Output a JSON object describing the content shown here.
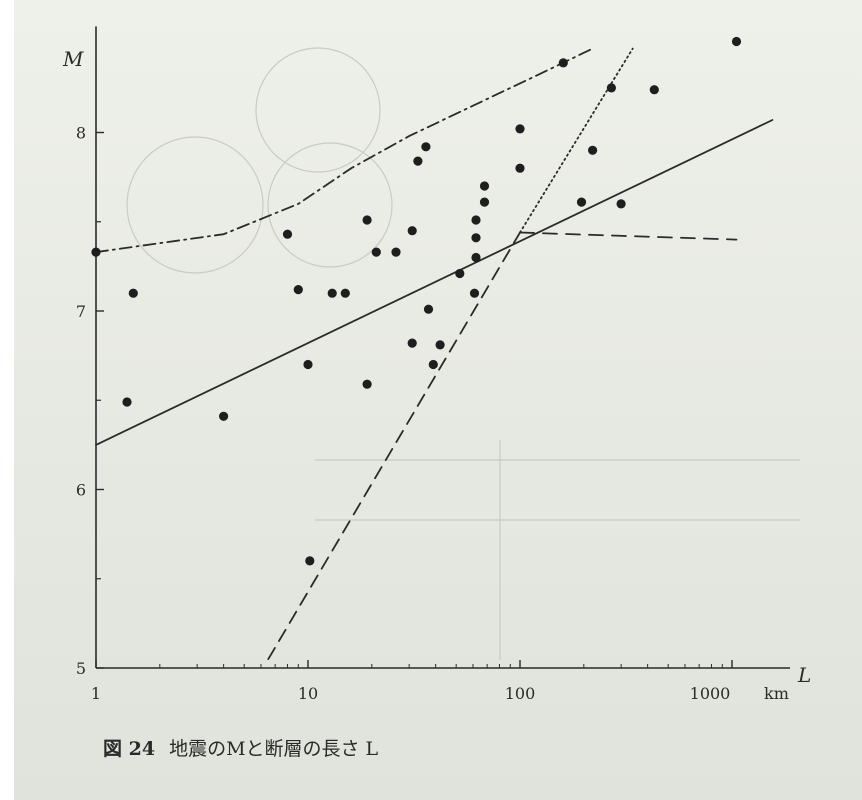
{
  "caption": {
    "figure_label": "図 24",
    "text": "地震のMと断層の長さ L"
  },
  "chart_data": {
    "type": "scatter",
    "title": "",
    "xlabel": "L",
    "ylabel": "M",
    "x_scale": "log",
    "x_unit": "km",
    "xlim": [
      1,
      1600
    ],
    "ylim": [
      5,
      8.55
    ],
    "x_ticks": [
      {
        "value": 1,
        "label": "1"
      },
      {
        "value": 10,
        "label": "10"
      },
      {
        "value": 100,
        "label": "100"
      },
      {
        "value": 1000,
        "label": "1000"
      }
    ],
    "y_ticks": [
      {
        "value": 5,
        "label": "5"
      },
      {
        "value": 6,
        "label": "6"
      },
      {
        "value": 7,
        "label": "7"
      },
      {
        "value": 8,
        "label": "8"
      }
    ],
    "points": [
      {
        "x": 1.0,
        "y": 7.33
      },
      {
        "x": 1.4,
        "y": 6.49
      },
      {
        "x": 1.5,
        "y": 7.1
      },
      {
        "x": 4.0,
        "y": 6.41
      },
      {
        "x": 8.0,
        "y": 7.43
      },
      {
        "x": 9.0,
        "y": 7.12
      },
      {
        "x": 10.0,
        "y": 6.7
      },
      {
        "x": 10.2,
        "y": 5.6
      },
      {
        "x": 13.0,
        "y": 7.1
      },
      {
        "x": 15.0,
        "y": 7.1
      },
      {
        "x": 19.0,
        "y": 6.59
      },
      {
        "x": 19.0,
        "y": 7.51
      },
      {
        "x": 21.0,
        "y": 7.33
      },
      {
        "x": 26.0,
        "y": 7.33
      },
      {
        "x": 31.0,
        "y": 6.82
      },
      {
        "x": 31.0,
        "y": 7.45
      },
      {
        "x": 33.0,
        "y": 7.84
      },
      {
        "x": 36.0,
        "y": 7.92
      },
      {
        "x": 37.0,
        "y": 7.01
      },
      {
        "x": 39.0,
        "y": 6.7
      },
      {
        "x": 42.0,
        "y": 6.81
      },
      {
        "x": 52.0,
        "y": 7.21
      },
      {
        "x": 61.0,
        "y": 7.1
      },
      {
        "x": 62.0,
        "y": 7.3
      },
      {
        "x": 62.0,
        "y": 7.51
      },
      {
        "x": 62.0,
        "y": 7.41
      },
      {
        "x": 68.0,
        "y": 7.61
      },
      {
        "x": 68.0,
        "y": 7.7
      },
      {
        "x": 100.0,
        "y": 8.02
      },
      {
        "x": 100.0,
        "y": 7.8
      },
      {
        "x": 160.0,
        "y": 8.39
      },
      {
        "x": 195.0,
        "y": 7.61
      },
      {
        "x": 220.0,
        "y": 7.9
      },
      {
        "x": 270.0,
        "y": 8.25
      },
      {
        "x": 300.0,
        "y": 7.6
      },
      {
        "x": 430.0,
        "y": 8.24
      },
      {
        "x": 1050.0,
        "y": 8.51
      }
    ],
    "lines": [
      {
        "style": "solid",
        "points": [
          [
            1,
            6.25
          ],
          [
            1550,
            8.07
          ]
        ]
      },
      {
        "style": "dashed",
        "points": [
          [
            6.5,
            5.05
          ],
          [
            100,
            7.44
          ]
        ]
      },
      {
        "style": "dotted",
        "points": [
          [
            100,
            7.44
          ],
          [
            340,
            8.47
          ]
        ]
      },
      {
        "style": "long-dashed",
        "points": [
          [
            100,
            7.44
          ],
          [
            1050,
            7.4
          ]
        ]
      },
      {
        "style": "dash-dot",
        "points": [
          [
            1,
            7.33
          ],
          [
            4,
            7.43
          ],
          [
            9,
            7.6
          ],
          [
            16,
            7.8
          ],
          [
            30,
            7.98
          ],
          [
            60,
            8.15
          ],
          [
            120,
            8.32
          ],
          [
            220,
            8.47
          ]
        ]
      }
    ]
  }
}
